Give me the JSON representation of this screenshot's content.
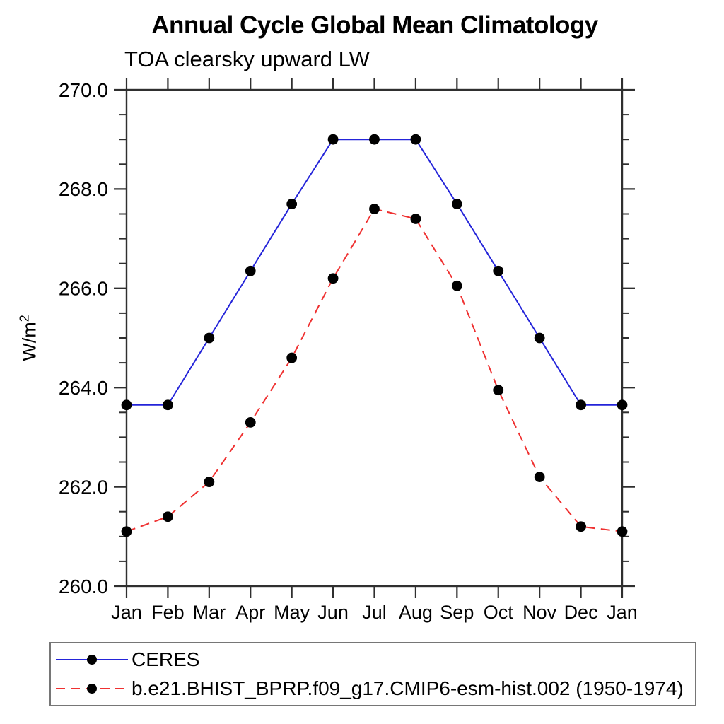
{
  "title": "Annual Cycle Global Mean Climatology",
  "subtitle": "TOA clearsky upward LW",
  "ylabel": {
    "base": "W/m",
    "exponent": "2"
  },
  "axis_color": "#2f2f2f",
  "chart_data": {
    "type": "line",
    "title": "Annual Cycle Global Mean Climatology",
    "subtitle": "TOA clearsky upward LW",
    "xlabel": "",
    "ylabel": "W/m^2",
    "categories": [
      "Jan",
      "Feb",
      "Mar",
      "Apr",
      "May",
      "Jun",
      "Jul",
      "Aug",
      "Sep",
      "Oct",
      "Nov",
      "Dec",
      "Jan"
    ],
    "ylim": [
      260.0,
      270.0
    ],
    "ymajor_step": 2.0,
    "yminor_step": 0.5,
    "ytick_labels": [
      "260.0",
      "262.0",
      "264.0",
      "266.0",
      "268.0",
      "270.0"
    ],
    "ytick_values": [
      260.0,
      262.0,
      264.0,
      266.0,
      268.0,
      270.0
    ],
    "grid": false,
    "legend_position": "bottom",
    "marker": "filled-circle",
    "marker_color": "#000000",
    "series": [
      {
        "name": "CERES",
        "color": "#2424d9",
        "style": "solid",
        "values": [
          263.65,
          263.65,
          265.0,
          266.35,
          267.7,
          269.0,
          269.0,
          269.0,
          267.7,
          266.35,
          265.0,
          263.65,
          263.65
        ]
      },
      {
        "name": "b.e21.BHIST_BPRP.f09_g17.CMIP6-esm-hist.002 (1950-1974)",
        "color": "#ef3131",
        "style": "dashed",
        "values": [
          261.1,
          261.4,
          262.1,
          263.3,
          264.6,
          266.2,
          267.6,
          267.4,
          266.05,
          263.95,
          262.2,
          261.2,
          261.1
        ]
      }
    ]
  }
}
